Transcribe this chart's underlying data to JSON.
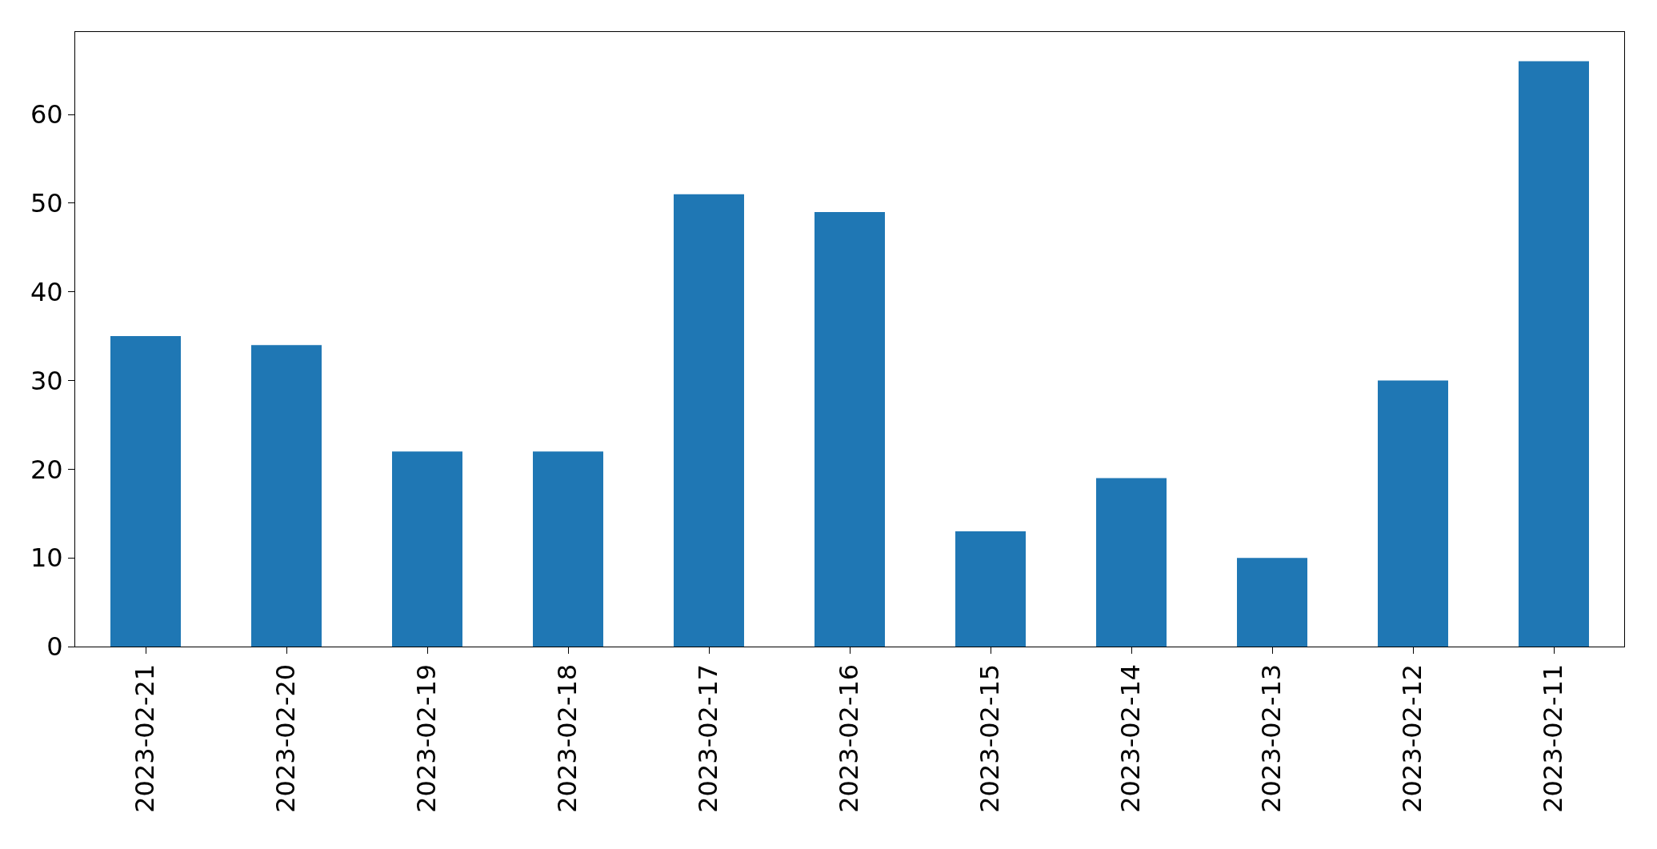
{
  "chart_data": {
    "type": "bar",
    "categories": [
      "2023-02-21",
      "2023-02-20",
      "2023-02-19",
      "2023-02-18",
      "2023-02-17",
      "2023-02-16",
      "2023-02-15",
      "2023-02-14",
      "2023-02-13",
      "2023-02-12",
      "2023-02-11"
    ],
    "values": [
      35,
      34,
      22,
      22,
      51,
      49,
      13,
      19,
      10,
      30,
      66
    ],
    "color": "#1f77b4",
    "ylim": [
      0,
      69.3
    ],
    "yticks": [
      0,
      10,
      20,
      30,
      40,
      50,
      60
    ]
  }
}
